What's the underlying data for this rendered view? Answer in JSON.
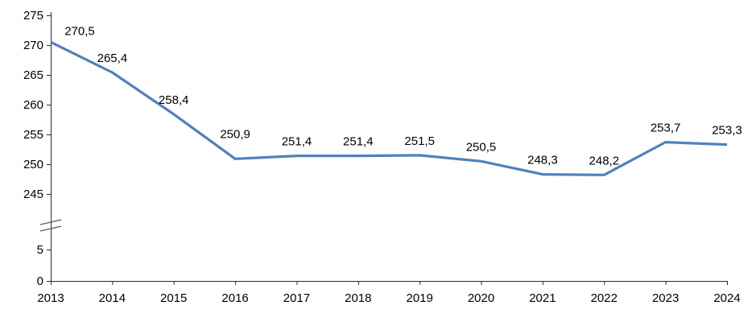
{
  "chart_data": {
    "type": "line",
    "title": "",
    "xlabel": "",
    "ylabel": "",
    "categories": [
      "2013",
      "2014",
      "2015",
      "2016",
      "2017",
      "2018",
      "2019",
      "2020",
      "2021",
      "2022",
      "2023",
      "2024"
    ],
    "series": [
      {
        "name": "value",
        "values": [
          270.5,
          265.4,
          258.4,
          250.9,
          251.4,
          251.4,
          251.5,
          250.5,
          248.3,
          248.2,
          253.7,
          253.3
        ],
        "value_labels": [
          "270,5",
          "265,4",
          "258,4",
          "250,9",
          "251,4",
          "251,4",
          "251,5",
          "250,5",
          "248,3",
          "248,2",
          "253,7",
          "253,3"
        ]
      }
    ],
    "decimal_separator": ",",
    "y_axis": {
      "upper_ticks": [
        245,
        250,
        255,
        260,
        265,
        270,
        275
      ],
      "lower_ticks": [
        0,
        5
      ],
      "upper_range": [
        245,
        275
      ],
      "lower_range": [
        0,
        5
      ],
      "axis_break": true
    },
    "x_axis": {
      "tick_marks": true
    },
    "grid": false,
    "legend": "none",
    "colors": {
      "line": "#4F81BD",
      "text": "#000000",
      "axis": "#2B2B2B",
      "axis_break": "#595959",
      "background": "#FFFFFF"
    }
  }
}
